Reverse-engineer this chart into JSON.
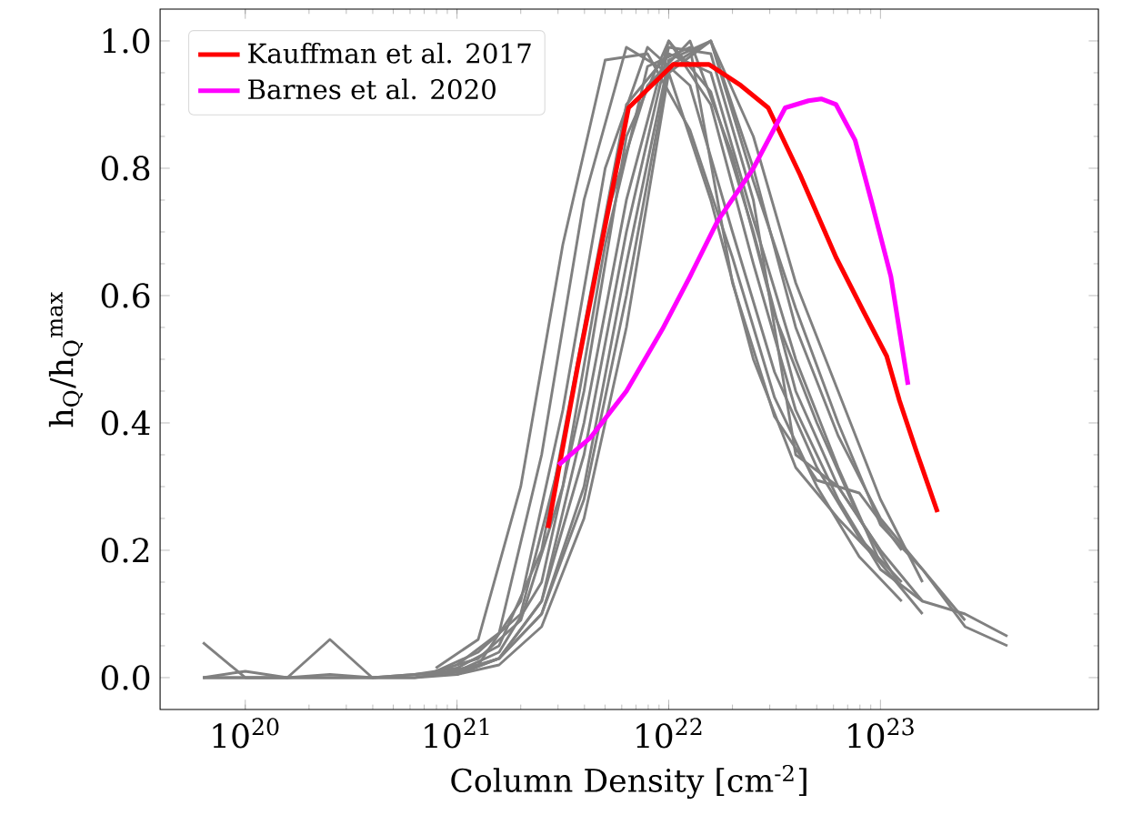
{
  "chart_data": {
    "type": "line",
    "xlabel": "Column Density [cm$^{-2}$]",
    "ylabel": "h$_{Q}$/h$_{Q}$$^{max}$",
    "log": "x",
    "legend": "top left",
    "xlim": [
      3.96e+19,
      1.07e+24
    ],
    "ylim": [
      -0.05,
      1.05
    ],
    "xticks": [
      {
        "value": 1e+20,
        "label": "10$^{20}$"
      },
      {
        "value": 1e+21,
        "label": "10$^{21}$"
      },
      {
        "value": 1e+22,
        "label": "10$^{22}$"
      },
      {
        "value": 1e+23,
        "label": "10$^{23}$"
      }
    ],
    "yticks": [
      {
        "value": 0,
        "label": "0.0"
      },
      {
        "value": 0.2,
        "label": "0.2"
      },
      {
        "value": 0.4,
        "label": "0.4"
      },
      {
        "value": 0.6,
        "label": "0.6"
      },
      {
        "value": 0.8,
        "label": "0.8"
      },
      {
        "value": 1.0,
        "label": "1.0"
      }
    ],
    "series": [
      {
        "color": "#808080",
        "x": [
          6.31e+19,
          1e+20,
          1.58e+20,
          2.51e+20,
          3.98e+20,
          6.31e+20,
          1e+21,
          1.58e+21,
          2.51e+21,
          3.98e+21,
          6.31e+21,
          1e+22,
          1.58e+22,
          2.51e+22,
          3.98e+22,
          6.31e+22,
          1e+23,
          1.58e+23
        ],
        "values": [
          0.055,
          0,
          0,
          0,
          0,
          0,
          0.01,
          0.03,
          0.12,
          0.4,
          0.75,
          1.0,
          0.92,
          0.7,
          0.45,
          0.3,
          0.2,
          0.12
        ]
      },
      {
        "color": "#808080",
        "x": [
          6.31e+19,
          1e+20,
          1.58e+20,
          2.51e+20,
          3.98e+20,
          6.31e+20,
          1e+21,
          1.58e+21,
          2.51e+21,
          3.98e+21,
          6.31e+21,
          1e+22,
          1.58e+22,
          2.51e+22,
          3.98e+22,
          6.31e+22,
          1e+23,
          1.58e+23
        ],
        "values": [
          0,
          0.01,
          0,
          0.005,
          0,
          0.005,
          0.015,
          0.05,
          0.2,
          0.55,
          0.9,
          0.98,
          0.95,
          0.72,
          0.5,
          0.33,
          0.18,
          0.1
        ]
      },
      {
        "color": "#808080",
        "x": [
          6.31e+19,
          1e+20,
          1.58e+20,
          2.51e+20,
          3.98e+20,
          6.31e+20,
          1e+21,
          1.58e+21,
          2.51e+21,
          3.98e+21,
          6.31e+21,
          1e+22,
          1.58e+22,
          2.51e+22,
          3.98e+22,
          6.31e+22,
          1e+23,
          1.58e+23,
          2.51e+23,
          3.98e+23
        ],
        "values": [
          0,
          0,
          0,
          0.06,
          0,
          0.005,
          0.01,
          0.04,
          0.15,
          0.45,
          0.85,
          1.0,
          0.9,
          0.65,
          0.42,
          0.28,
          0.17,
          0.12,
          0.1,
          0.065
        ]
      },
      {
        "color": "#808080",
        "x": [
          6.31e+19,
          1e+20,
          1.58e+20,
          2.51e+20,
          3.98e+20,
          6.31e+20,
          1e+21,
          1.58e+21,
          2.51e+21,
          3.98e+21,
          6.31e+21,
          1e+22,
          1.58e+22,
          2.51e+22,
          3.98e+22,
          6.31e+22,
          1e+23,
          1.58e+23,
          2.51e+23,
          3.98e+23
        ],
        "values": [
          0,
          0,
          0,
          0,
          0,
          0,
          0.005,
          0.03,
          0.1,
          0.3,
          0.65,
          0.97,
          1.0,
          0.8,
          0.55,
          0.38,
          0.25,
          0.17,
          0.08,
          0.05
        ]
      },
      {
        "color": "#808080",
        "x": [
          1e+21,
          1.58e+21,
          2.51e+21,
          3.98e+21,
          6.31e+21,
          1e+22,
          1.58e+22,
          2.51e+22,
          3.98e+22,
          6.31e+22,
          1e+23
        ],
        "values": [
          0.02,
          0.07,
          0.35,
          0.75,
          0.99,
          0.95,
          0.75,
          0.5,
          0.33,
          0.25,
          0.18
        ]
      },
      {
        "color": "#808080",
        "x": [
          7.94e+20,
          1.26e+21,
          2e+21,
          3.16e+21,
          5.01e+21,
          7.94e+21,
          1.26e+22,
          2e+22,
          3.16e+22,
          5.01e+22,
          7.94e+22,
          1.26e+23
        ],
        "values": [
          0.005,
          0.02,
          0.12,
          0.42,
          0.8,
          0.99,
          0.93,
          0.7,
          0.48,
          0.33,
          0.22,
          0.15
        ]
      },
      {
        "color": "#808080",
        "x": [
          1e+21,
          1.58e+21,
          2.51e+21,
          3.98e+21,
          6.31e+21,
          1e+22,
          1.58e+22,
          2.51e+22,
          3.98e+22,
          6.31e+22,
          1e+23,
          1.58e+23
        ],
        "values": [
          0.005,
          0.02,
          0.08,
          0.25,
          0.55,
          0.95,
          1.0,
          0.85,
          0.62,
          0.45,
          0.28,
          0.15
        ]
      },
      {
        "color": "#808080",
        "x": [
          7.94e+20,
          1.26e+21,
          2e+21,
          3.16e+21,
          5.01e+21,
          7.94e+21,
          1.26e+22,
          2e+22,
          3.16e+22,
          5.01e+22,
          7.94e+22,
          1.26e+23
        ],
        "values": [
          0.01,
          0.03,
          0.09,
          0.3,
          0.68,
          0.96,
          0.99,
          0.62,
          0.41,
          0.31,
          0.29,
          0.2
        ]
      },
      {
        "color": "#808080",
        "x": [
          1e+21,
          1.58e+21,
          2.51e+21,
          3.98e+21,
          6.31e+21,
          1e+22,
          1.58e+22,
          2.51e+22,
          3.98e+22,
          6.31e+22,
          1e+23
        ],
        "values": [
          0.005,
          0.03,
          0.12,
          0.35,
          0.7,
          0.99,
          0.98,
          0.75,
          0.35,
          0.3,
          0.2
        ]
      },
      {
        "color": "#808080",
        "x": [
          7.94e+20,
          1.26e+21,
          2e+21,
          3.16e+21,
          5.01e+21,
          7.94e+21,
          1.26e+22,
          2e+22,
          3.16e+22,
          5.01e+22,
          7.94e+22,
          1.26e+23
        ],
        "values": [
          0.01,
          0.04,
          0.1,
          0.36,
          0.72,
          0.93,
          1.0,
          0.82,
          0.57,
          0.4,
          0.25,
          0.14
        ]
      },
      {
        "color": "#808080",
        "x": [
          6.31e+20,
          1e+21,
          1.58e+21,
          2.51e+21,
          3.98e+21,
          6.31e+21,
          1e+22,
          1.58e+22,
          2.51e+22,
          3.98e+22,
          6.31e+22,
          1e+23,
          1.58e+23,
          2.51e+23
        ],
        "values": [
          0.005,
          0.008,
          0.03,
          0.1,
          0.28,
          0.6,
          0.96,
          1.0,
          0.78,
          0.58,
          0.4,
          0.24,
          0.17,
          0.09
        ]
      },
      {
        "color": "#808080",
        "x": [
          7.94e+20,
          1.26e+21,
          2e+21,
          3.16e+21,
          5.01e+21,
          7.94e+21,
          1.26e+22,
          2e+22,
          3.16e+22,
          5.01e+22,
          7.94e+22,
          1.26e+23
        ],
        "values": [
          0.015,
          0.06,
          0.3,
          0.68,
          0.97,
          0.98,
          0.86,
          0.66,
          0.44,
          0.3,
          0.19,
          0.12
        ]
      },
      {
        "name": "Kauffman et al. 2017",
        "color": "#ff0000",
        "x": [
          2.69e+21,
          3.72e+21,
          4.68e+21,
          6.46e+21,
          1.05e+22,
          1.55e+22,
          2.19e+22,
          2.95e+22,
          4.17e+22,
          6.17e+22,
          8.32e+22,
          1.07e+23,
          1.23e+23,
          1.48e+23,
          1.86e+23
        ],
        "values": [
          0.235,
          0.49,
          0.66,
          0.895,
          0.963,
          0.963,
          0.93,
          0.895,
          0.79,
          0.66,
          0.575,
          0.505,
          0.435,
          0.355,
          0.26
        ]
      },
      {
        "name": "Barnes et al. 2020",
        "color": "#ff00ff",
        "x": [
          3.02e+21,
          4.27e+21,
          6.31e+21,
          9.33e+21,
          1.26e+22,
          1.7e+22,
          2.51e+22,
          3.55e+22,
          4.57e+22,
          5.25e+22,
          6.17e+22,
          7.59e+22,
          9.12e+22,
          1.12e+23,
          1.35e+23
        ],
        "values": [
          0.334,
          0.377,
          0.45,
          0.547,
          0.63,
          0.717,
          0.8,
          0.895,
          0.906,
          0.909,
          0.9,
          0.844,
          0.745,
          0.63,
          0.46
        ]
      }
    ]
  }
}
